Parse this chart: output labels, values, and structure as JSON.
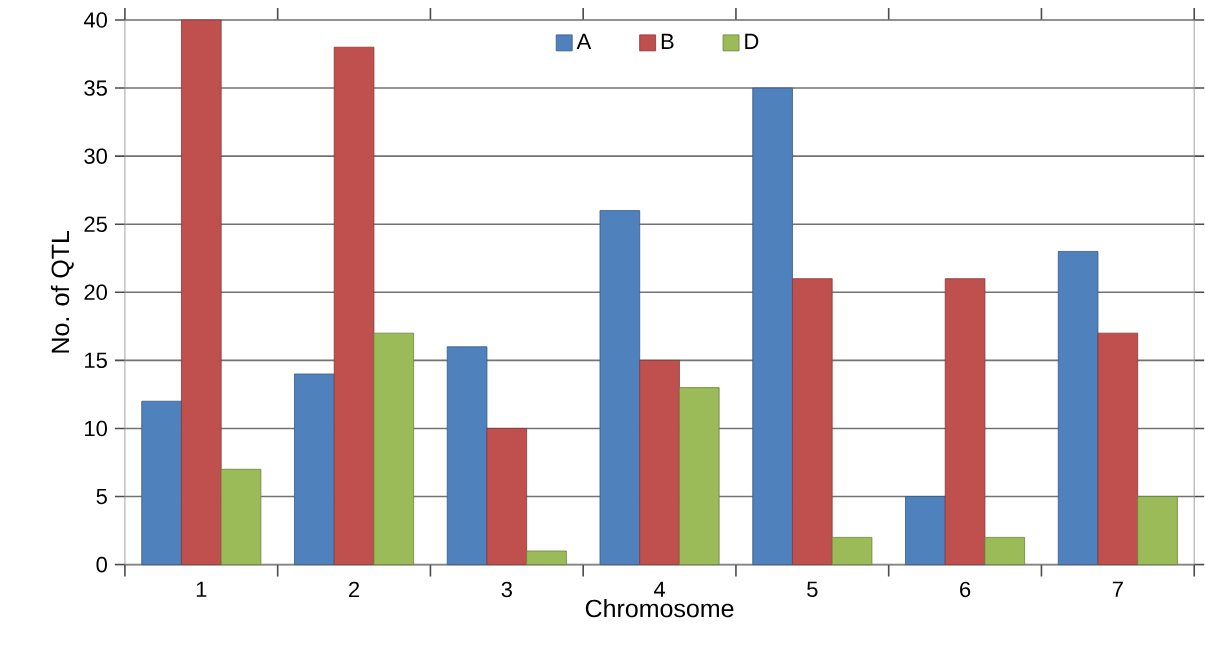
{
  "chart_data": {
    "type": "bar",
    "xlabel": "Chromosome",
    "ylabel": "No. of QTL",
    "categories": [
      "1",
      "2",
      "3",
      "4",
      "5",
      "6",
      "7"
    ],
    "series": [
      {
        "name": "A",
        "color": "#4f81bd",
        "values": [
          12,
          14,
          16,
          26,
          35,
          5,
          23
        ]
      },
      {
        "name": "B",
        "color": "#c0504d",
        "values": [
          40,
          38,
          10,
          15,
          21,
          21,
          17
        ]
      },
      {
        "name": "D",
        "color": "#9bbb59",
        "values": [
          7,
          17,
          1,
          13,
          2,
          2,
          5
        ]
      }
    ],
    "ylim": [
      0,
      40
    ],
    "yticks": [
      0,
      5,
      10,
      15,
      20,
      25,
      30,
      35,
      40
    ],
    "grid": "y",
    "legend": "top"
  }
}
